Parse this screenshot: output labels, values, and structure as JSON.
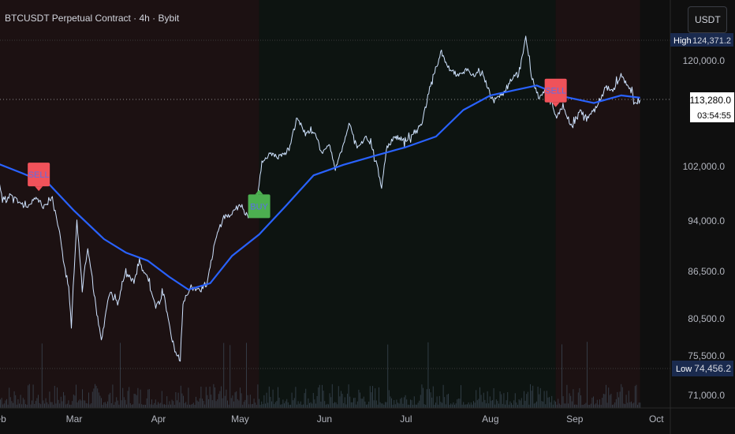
{
  "header": {
    "title": "BTCUSDT Perpetual Contract · 4h · Bybit"
  },
  "unit_button": {
    "label": "USDT"
  },
  "colors": {
    "background": "#0f0f0f",
    "bear_zone": "#1c1112",
    "bull_zone": "#0d1411",
    "price_line": "#cfe3ff",
    "ma_line": "#2962ff",
    "sell_label": "#f0525a",
    "buy_label": "#4caf50",
    "volume_bar": "#3c4a57",
    "axis_tag": "#1a2a4e"
  },
  "price_axis": {
    "tick_labels": [
      "120,000.0",
      "102,000.0",
      "94,000.0",
      "86,500.0",
      "80,500.0",
      "75,500.0",
      "71,000.0"
    ],
    "high": {
      "tag": "High",
      "value": "124,371.2"
    },
    "low": {
      "tag": "Low",
      "value": "74,456.2"
    },
    "current": {
      "value": "113,280.0",
      "countdown": "03:54:55"
    }
  },
  "time_axis": {
    "labels": [
      "Feb",
      "Mar",
      "Apr",
      "May",
      "Jun",
      "Jul",
      "Aug",
      "Sep",
      "Oct"
    ]
  },
  "signals": [
    {
      "label": "SELL",
      "type": "sell",
      "date": "2025-02-16"
    },
    {
      "label": "BUY",
      "type": "buy",
      "date": "2025-05-08"
    },
    {
      "label": "SELL",
      "type": "sell",
      "date": "2025-08-25"
    }
  ],
  "chart_data": {
    "type": "line",
    "title": "BTCUSDT Perpetual Contract · 4h · Bybit",
    "xlabel": "",
    "ylabel": "",
    "y_unit": "USDT",
    "ylim": [
      71000,
      126000
    ],
    "y_ticks": [
      120000,
      102000,
      94000,
      86500,
      80500,
      75500,
      71000
    ],
    "x_ticks": [
      "2025-03-01",
      "2025-04-01",
      "2025-05-01",
      "2025-06-01",
      "2025-07-01",
      "2025-08-01",
      "2025-09-01",
      "2025-10-01"
    ],
    "grid": false,
    "background_zones": [
      {
        "from": "2025-01-28",
        "to": "2025-05-08",
        "type": "bearish"
      },
      {
        "from": "2025-05-08",
        "to": "2025-08-25",
        "type": "bullish"
      },
      {
        "from": "2025-08-25",
        "to": "2025-09-25",
        "type": "bearish"
      }
    ],
    "series": [
      {
        "name": "",
        "kind": "price",
        "points": [
          [
            "2025-01-28",
            104500
          ],
          [
            "2025-01-31",
            102000
          ],
          [
            "2025-02-03",
            96500
          ],
          [
            "2025-02-06",
            98000
          ],
          [
            "2025-02-09",
            96500
          ],
          [
            "2025-02-12",
            96000
          ],
          [
            "2025-02-15",
            97500
          ],
          [
            "2025-02-18",
            96000
          ],
          [
            "2025-02-21",
            97500
          ],
          [
            "2025-02-24",
            91500
          ],
          [
            "2025-02-25",
            88000
          ],
          [
            "2025-02-27",
            84500
          ],
          [
            "2025-02-28",
            79500
          ],
          [
            "2025-03-02",
            94000
          ],
          [
            "2025-03-04",
            84000
          ],
          [
            "2025-03-06",
            90000
          ],
          [
            "2025-03-09",
            82000
          ],
          [
            "2025-03-11",
            77500
          ],
          [
            "2025-03-14",
            84000
          ],
          [
            "2025-03-17",
            82500
          ],
          [
            "2025-03-20",
            86500
          ],
          [
            "2025-03-23",
            85000
          ],
          [
            "2025-03-25",
            88000
          ],
          [
            "2025-03-28",
            85500
          ],
          [
            "2025-03-31",
            82000
          ],
          [
            "2025-04-03",
            83500
          ],
          [
            "2025-04-07",
            76000
          ],
          [
            "2025-04-09",
            75000
          ],
          [
            "2025-04-10",
            82500
          ],
          [
            "2025-04-13",
            84500
          ],
          [
            "2025-04-16",
            84000
          ],
          [
            "2025-04-19",
            85000
          ],
          [
            "2025-04-22",
            91500
          ],
          [
            "2025-04-25",
            94500
          ],
          [
            "2025-04-28",
            95000
          ],
          [
            "2025-05-01",
            96500
          ],
          [
            "2025-05-04",
            94500
          ],
          [
            "2025-05-07",
            96500
          ],
          [
            "2025-05-09",
            103000
          ],
          [
            "2025-05-12",
            104000
          ],
          [
            "2025-05-15",
            103500
          ],
          [
            "2025-05-19",
            105000
          ],
          [
            "2025-05-22",
            110500
          ],
          [
            "2025-05-25",
            107500
          ],
          [
            "2025-05-28",
            108000
          ],
          [
            "2025-05-31",
            104500
          ],
          [
            "2025-06-03",
            105500
          ],
          [
            "2025-06-05",
            101500
          ],
          [
            "2025-06-08",
            105500
          ],
          [
            "2025-06-10",
            109500
          ],
          [
            "2025-06-13",
            105000
          ],
          [
            "2025-06-16",
            107000
          ],
          [
            "2025-06-19",
            104500
          ],
          [
            "2025-06-22",
            99000
          ],
          [
            "2025-06-24",
            105500
          ],
          [
            "2025-06-27",
            107000
          ],
          [
            "2025-07-01",
            106500
          ],
          [
            "2025-07-04",
            108000
          ],
          [
            "2025-07-07",
            109500
          ],
          [
            "2025-07-10",
            116000
          ],
          [
            "2025-07-14",
            121500
          ],
          [
            "2025-07-17",
            118500
          ],
          [
            "2025-07-20",
            117500
          ],
          [
            "2025-07-23",
            118500
          ],
          [
            "2025-07-26",
            117500
          ],
          [
            "2025-07-29",
            118000
          ],
          [
            "2025-08-01",
            114000
          ],
          [
            "2025-08-03",
            113500
          ],
          [
            "2025-08-06",
            114500
          ],
          [
            "2025-08-09",
            117000
          ],
          [
            "2025-08-12",
            119000
          ],
          [
            "2025-08-14",
            124000
          ],
          [
            "2025-08-16",
            117500
          ],
          [
            "2025-08-19",
            113500
          ],
          [
            "2025-08-22",
            116000
          ],
          [
            "2025-08-25",
            110500
          ],
          [
            "2025-08-28",
            112000
          ],
          [
            "2025-08-31",
            108500
          ],
          [
            "2025-09-03",
            111500
          ],
          [
            "2025-09-06",
            110500
          ],
          [
            "2025-09-09",
            112000
          ],
          [
            "2025-09-12",
            115500
          ],
          [
            "2025-09-15",
            115000
          ],
          [
            "2025-09-18",
            117500
          ],
          [
            "2025-09-21",
            115500
          ],
          [
            "2025-09-23",
            112500
          ],
          [
            "2025-09-25",
            113280
          ]
        ]
      },
      {
        "name": "",
        "kind": "moving-average",
        "points": [
          [
            "2025-01-28",
            103200
          ],
          [
            "2025-02-10",
            101000
          ],
          [
            "2025-02-20",
            99300
          ],
          [
            "2025-03-01",
            95500
          ],
          [
            "2025-03-12",
            91300
          ],
          [
            "2025-03-20",
            89300
          ],
          [
            "2025-03-28",
            88100
          ],
          [
            "2025-04-05",
            85800
          ],
          [
            "2025-04-12",
            84200
          ],
          [
            "2025-04-20",
            85000
          ],
          [
            "2025-04-28",
            88800
          ],
          [
            "2025-05-08",
            92000
          ],
          [
            "2025-05-18",
            96300
          ],
          [
            "2025-05-28",
            100700
          ],
          [
            "2025-06-08",
            102300
          ],
          [
            "2025-06-20",
            103900
          ],
          [
            "2025-07-01",
            105300
          ],
          [
            "2025-07-12",
            107100
          ],
          [
            "2025-07-22",
            111600
          ],
          [
            "2025-08-01",
            114100
          ],
          [
            "2025-08-10",
            115000
          ],
          [
            "2025-08-18",
            115800
          ],
          [
            "2025-08-28",
            113900
          ],
          [
            "2025-09-08",
            112800
          ],
          [
            "2025-09-18",
            114100
          ],
          [
            "2025-09-25",
            113700
          ]
        ]
      }
    ]
  }
}
